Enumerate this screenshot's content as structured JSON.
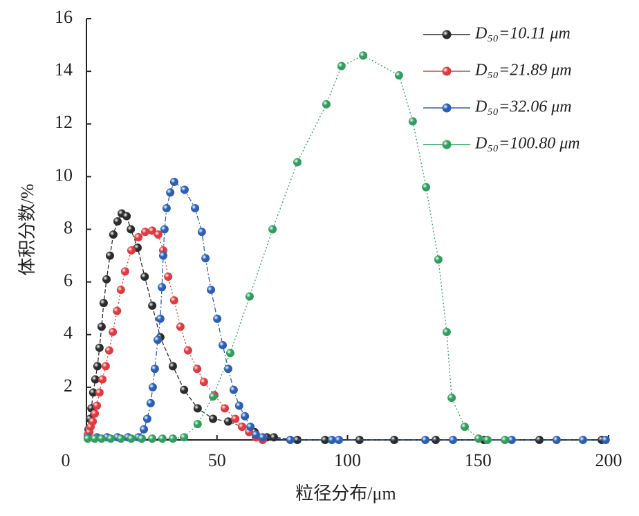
{
  "chart_data": {
    "type": "line",
    "x_label": "粒径分布/μm",
    "y_label": "体积分数/%",
    "xlim": [
      0,
      200
    ],
    "ylim": [
      0,
      16
    ],
    "xticks": [
      0,
      50,
      100,
      150,
      200
    ],
    "yticks": [
      2,
      4,
      6,
      8,
      10,
      12,
      14,
      16
    ],
    "legend": "upper right",
    "series": [
      {
        "name": "D₅₀=10.11 μm",
        "color": "#2b2b2b",
        "dash": "6,3",
        "x": [
          0.8,
          1.3,
          1.9,
          2.6,
          3.4,
          4.2,
          5.0,
          5.8,
          6.6,
          7.7,
          9.0,
          10.3,
          11.9,
          13.5,
          15.4,
          17.0,
          19.6,
          22.3,
          25.2,
          28.3,
          33.1,
          37.4,
          42.6,
          48.5,
          54.3,
          59.6,
          64.4,
          69.1,
          71.8,
          80.8,
          91.4,
          104.6,
          117.9,
          133.8,
          152.3,
          173.5,
          197.4
        ],
        "values": [
          0.4,
          0.8,
          1.2,
          1.8,
          2.3,
          2.8,
          3.5,
          4.3,
          5.2,
          6.1,
          7.0,
          7.8,
          8.3,
          8.6,
          8.5,
          8.0,
          7.3,
          6.2,
          5.1,
          3.9,
          2.8,
          1.9,
          1.2,
          0.8,
          0.7,
          0.5,
          0.3,
          0.1,
          0.1,
          0,
          0,
          0,
          0,
          0,
          0,
          0,
          0
        ]
      },
      {
        "name": "D₅₀=21.89 μm",
        "color": "#e0393e",
        "dash": "2,3",
        "x": [
          0.5,
          1.1,
          1.6,
          2.4,
          3.2,
          4.0,
          5.0,
          6.1,
          7.4,
          8.7,
          10.1,
          11.7,
          13.2,
          14.8,
          17.2,
          19.9,
          22.5,
          25.2,
          27.5,
          29.4,
          31.3,
          33.6,
          36.0,
          38.9,
          42.4,
          45.0,
          49.0,
          53.0,
          57.0,
          59.6,
          62.3,
          64.9,
          67.5
        ],
        "values": [
          0.2,
          0.3,
          0.5,
          0.7,
          1.0,
          1.3,
          1.8,
          2.3,
          2.8,
          3.4,
          4.1,
          4.9,
          5.7,
          6.4,
          7.2,
          7.7,
          7.9,
          7.95,
          7.8,
          7.2,
          6.2,
          5.3,
          4.3,
          3.4,
          2.7,
          2.2,
          1.7,
          1.2,
          0.8,
          0.5,
          0.3,
          0.1,
          0
        ]
      },
      {
        "name": "D₅₀=32.06 μm",
        "color": "#2a5fb5",
        "dash": "7,3,2,3",
        "x": [
          0.5,
          4.0,
          7.9,
          11.9,
          15.9,
          19.9,
          22.0,
          23.3,
          24.6,
          25.4,
          26.2,
          27.3,
          28.3,
          28.9,
          29.4,
          29.9,
          30.7,
          32.1,
          33.6,
          37.6,
          41.6,
          44.2,
          45.6,
          47.7,
          50.1,
          52.2,
          54.3,
          56.4,
          58.5,
          60.7,
          62.8,
          64.9,
          67.5,
          78.1,
          94.0,
          96.7,
          129.8,
          140.4,
          162.9,
          180.1,
          190.2,
          198.9
        ],
        "values": [
          0.1,
          0.1,
          0.1,
          0.1,
          0.1,
          0.1,
          0.4,
          0.8,
          1.4,
          2.0,
          2.7,
          3.8,
          4.6,
          5.8,
          7.0,
          8.0,
          8.8,
          9.4,
          9.8,
          9.5,
          8.8,
          7.9,
          6.9,
          5.7,
          4.6,
          3.6,
          2.7,
          1.9,
          1.3,
          0.9,
          0.5,
          0.2,
          0.1,
          0,
          0,
          0,
          0,
          0,
          0,
          0,
          0,
          0
        ]
      },
      {
        "name": "D₅₀=100.80 μm",
        "color": "#2f9e5e",
        "dash": "2,3",
        "x": [
          0.5,
          3.2,
          5.8,
          9.3,
          13.2,
          17.2,
          21.2,
          25.2,
          29.1,
          33.1,
          37.4,
          42.6,
          48.5,
          55.1,
          62.5,
          71.3,
          80.8,
          91.9,
          97.7,
          106.0,
          119.7,
          125.0,
          130.1,
          134.8,
          138.0,
          139.9,
          144.9,
          150.2,
          153.6,
          160.3
        ],
        "values": [
          0.05,
          0.05,
          0.05,
          0.05,
          0.05,
          0.05,
          0.05,
          0.05,
          0.05,
          0.05,
          0.1,
          0.6,
          1.65,
          3.3,
          5.45,
          8.0,
          10.55,
          12.75,
          14.2,
          14.6,
          13.85,
          12.1,
          9.6,
          6.85,
          4.1,
          1.6,
          0.5,
          0.05,
          0,
          0
        ]
      }
    ]
  }
}
